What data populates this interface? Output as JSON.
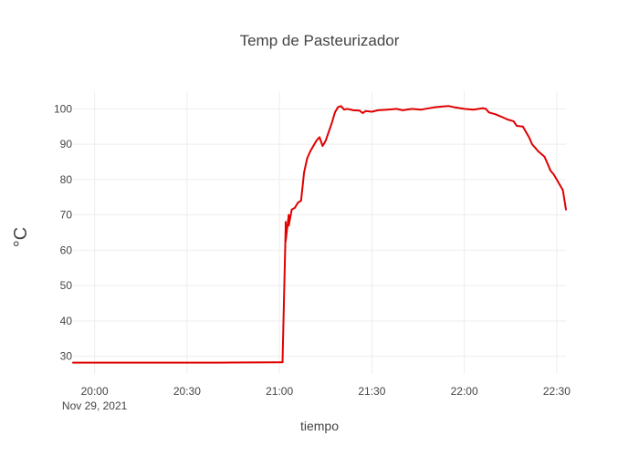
{
  "chart_data": {
    "type": "line",
    "title": "Temp de Pasteurizador",
    "xlabel": "tiempo",
    "ylabel": "°C",
    "x_range": [
      "2021-11-29 19:53",
      "2021-11-29 22:33"
    ],
    "ylim": [
      25,
      105
    ],
    "y_ticks": [
      30,
      40,
      50,
      60,
      70,
      80,
      90,
      100
    ],
    "x_ticks": [
      {
        "t": "2021-11-29 20:00",
        "label": "20:00",
        "sublabel": "Nov 29, 2021"
      },
      {
        "t": "2021-11-29 20:30",
        "label": "20:30",
        "sublabel": ""
      },
      {
        "t": "2021-11-29 21:00",
        "label": "21:00",
        "sublabel": ""
      },
      {
        "t": "2021-11-29 21:30",
        "label": "21:30",
        "sublabel": ""
      },
      {
        "t": "2021-11-29 22:00",
        "label": "22:00",
        "sublabel": ""
      },
      {
        "t": "2021-11-29 22:30",
        "label": "22:30",
        "sublabel": ""
      }
    ],
    "grid": true,
    "series": [
      {
        "color": "#e00000",
        "points": [
          [
            "2021-11-29 19:53",
            28.2
          ],
          [
            "2021-11-29 20:15",
            28.2
          ],
          [
            "2021-11-29 20:40",
            28.2
          ],
          [
            "2021-11-29 21:00",
            28.3
          ],
          [
            "2021-11-29 21:01",
            28.3
          ],
          [
            "2021-11-29 21:02",
            66.0
          ],
          [
            "2021-11-29 21:02",
            68.0
          ],
          [
            "2021-11-29 21:02",
            62.5
          ],
          [
            "2021-11-29 21:03",
            70.0
          ],
          [
            "2021-11-29 21:03",
            67.0
          ],
          [
            "2021-11-29 21:04",
            71.5
          ],
          [
            "2021-11-29 21:05",
            72.0
          ],
          [
            "2021-11-29 21:06",
            73.5
          ],
          [
            "2021-11-29 21:07",
            74.0
          ],
          [
            "2021-11-29 21:08",
            82.0
          ],
          [
            "2021-11-29 21:09",
            86.0
          ],
          [
            "2021-11-29 21:10",
            88.0
          ],
          [
            "2021-11-29 21:12",
            91.0
          ],
          [
            "2021-11-29 21:13",
            92.0
          ],
          [
            "2021-11-29 21:14",
            89.5
          ],
          [
            "2021-11-29 21:15",
            91.0
          ],
          [
            "2021-11-29 21:16",
            93.5
          ],
          [
            "2021-11-29 21:17",
            96.0
          ],
          [
            "2021-11-29 21:18",
            99.0
          ],
          [
            "2021-11-29 21:19",
            100.5
          ],
          [
            "2021-11-29 21:20",
            100.8
          ],
          [
            "2021-11-29 21:21",
            99.8
          ],
          [
            "2021-11-29 21:22",
            100.0
          ],
          [
            "2021-11-29 21:24",
            99.6
          ],
          [
            "2021-11-29 21:26",
            99.5
          ],
          [
            "2021-11-29 21:27",
            98.8
          ],
          [
            "2021-11-29 21:28",
            99.4
          ],
          [
            "2021-11-29 21:30",
            99.2
          ],
          [
            "2021-11-29 21:32",
            99.6
          ],
          [
            "2021-11-29 21:35",
            99.8
          ],
          [
            "2021-11-29 21:38",
            100.0
          ],
          [
            "2021-11-29 21:40",
            99.6
          ],
          [
            "2021-11-29 21:43",
            100.0
          ],
          [
            "2021-11-29 21:46",
            99.8
          ],
          [
            "2021-11-29 21:50",
            100.4
          ],
          [
            "2021-11-29 21:53",
            100.7
          ],
          [
            "2021-11-29 21:55",
            100.8
          ],
          [
            "2021-11-29 21:57",
            100.4
          ],
          [
            "2021-11-29 22:00",
            100.0
          ],
          [
            "2021-11-29 22:03",
            99.8
          ],
          [
            "2021-11-29 22:06",
            100.2
          ],
          [
            "2021-11-29 22:07",
            100.0
          ],
          [
            "2021-11-29 22:08",
            99.0
          ],
          [
            "2021-11-29 22:10",
            98.5
          ],
          [
            "2021-11-29 22:12",
            97.8
          ],
          [
            "2021-11-29 22:14",
            97.0
          ],
          [
            "2021-11-29 22:16",
            96.5
          ],
          [
            "2021-11-29 22:17",
            95.2
          ],
          [
            "2021-11-29 22:19",
            95.0
          ],
          [
            "2021-11-29 22:20",
            93.5
          ],
          [
            "2021-11-29 22:21",
            92.0
          ],
          [
            "2021-11-29 22:22",
            90.0
          ],
          [
            "2021-11-29 22:24",
            88.0
          ],
          [
            "2021-11-29 22:26",
            86.5
          ],
          [
            "2021-11-29 22:27",
            84.5
          ],
          [
            "2021-11-29 22:28",
            82.5
          ],
          [
            "2021-11-29 22:29",
            81.5
          ],
          [
            "2021-11-29 22:30",
            80.0
          ],
          [
            "2021-11-29 22:31",
            78.5
          ],
          [
            "2021-11-29 22:32",
            77.0
          ],
          [
            "2021-11-29 22:33",
            71.5
          ]
        ]
      }
    ]
  }
}
